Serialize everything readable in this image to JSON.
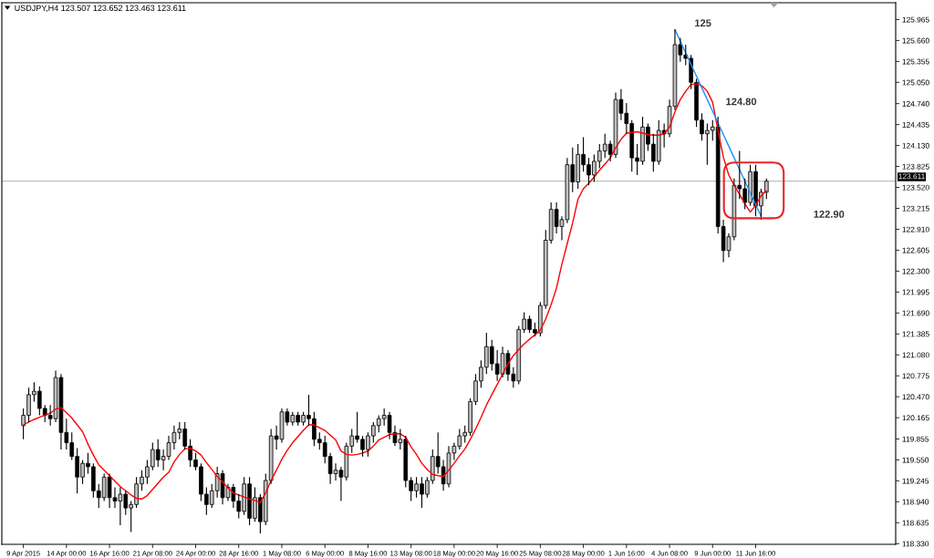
{
  "chart_data": {
    "type": "candlestick",
    "title": "USDJPY,H4 123.507 123.652 123.463 123.611",
    "categories": [
      "9 Apr 2015",
      null,
      null,
      null,
      null,
      null,
      null,
      null,
      "14 Apr 00:00",
      null,
      null,
      null,
      null,
      null,
      null,
      null,
      "16 Apr 16:00",
      null,
      null,
      null,
      null,
      null,
      null,
      null,
      "21 Apr 08:00",
      null,
      null,
      null,
      null,
      null,
      null,
      null,
      "24 Apr 00:00",
      null,
      null,
      null,
      null,
      null,
      null,
      null,
      "28 Apr 16:00",
      null,
      null,
      null,
      null,
      null,
      null,
      null,
      "1 May 08:00",
      null,
      null,
      null,
      null,
      null,
      null,
      null,
      "6 May 00:00",
      null,
      null,
      null,
      null,
      null,
      null,
      null,
      "8 May 16:00",
      null,
      null,
      null,
      null,
      null,
      null,
      null,
      "13 May 08:00",
      null,
      null,
      null,
      null,
      null,
      null,
      null,
      "18 May 00:00",
      null,
      null,
      null,
      null,
      null,
      null,
      null,
      "20 May 16:00",
      null,
      null,
      null,
      null,
      null,
      null,
      null,
      "25 May 08:00",
      null,
      null,
      null,
      null,
      null,
      null,
      null,
      "28 May 00:00",
      null,
      null,
      null,
      null,
      null,
      null,
      null,
      "1 Jun 16:00",
      null,
      null,
      null,
      null,
      null,
      null,
      null,
      "4 Jun 08:00",
      null,
      null,
      null,
      null,
      null,
      null,
      null,
      "9 Jun 00:00",
      null,
      null,
      null,
      null,
      null,
      null,
      null,
      "11 Jun 16:00",
      null,
      null
    ],
    "ohlc": [
      [
        120.05,
        120.3,
        119.85,
        120.2
      ],
      [
        120.2,
        120.6,
        120.1,
        120.5
      ],
      [
        120.5,
        120.68,
        120.4,
        120.55
      ],
      [
        120.55,
        120.62,
        120.2,
        120.3
      ],
      [
        120.3,
        120.35,
        120.1,
        120.2
      ],
      [
        120.2,
        120.35,
        120.05,
        120.15
      ],
      [
        120.15,
        120.85,
        120.1,
        120.75
      ],
      [
        120.75,
        120.8,
        119.7,
        119.95
      ],
      [
        119.95,
        120.15,
        119.7,
        119.8
      ],
      [
        119.8,
        119.95,
        119.55,
        119.6
      ],
      [
        119.6,
        119.72,
        119.06,
        119.3
      ],
      [
        119.3,
        119.55,
        119.2,
        119.5
      ],
      [
        119.5,
        119.65,
        119.35,
        119.45
      ],
      [
        119.45,
        119.5,
        119.0,
        119.1
      ],
      [
        119.1,
        119.2,
        118.85,
        119.0
      ],
      [
        119.0,
        119.35,
        118.95,
        119.3
      ],
      [
        119.3,
        119.35,
        118.85,
        119.0
      ],
      [
        119.0,
        119.15,
        118.85,
        118.95
      ],
      [
        118.95,
        119.15,
        118.6,
        119.05
      ],
      [
        119.05,
        119.1,
        118.75,
        118.85
      ],
      [
        118.85,
        118.95,
        118.5,
        118.9
      ],
      [
        118.9,
        119.3,
        118.85,
        119.2
      ],
      [
        119.2,
        119.4,
        119.1,
        119.3
      ],
      [
        119.3,
        119.55,
        119.2,
        119.45
      ],
      [
        119.45,
        119.8,
        119.4,
        119.7
      ],
      [
        119.7,
        119.85,
        119.45,
        119.55
      ],
      [
        119.55,
        119.7,
        119.4,
        119.6
      ],
      [
        119.6,
        119.9,
        119.55,
        119.8
      ],
      [
        119.8,
        120.05,
        119.7,
        119.95
      ],
      [
        119.95,
        120.1,
        119.85,
        120.0
      ],
      [
        120.0,
        120.1,
        119.7,
        119.75
      ],
      [
        119.75,
        119.85,
        119.45,
        119.55
      ],
      [
        119.55,
        119.65,
        119.4,
        119.45
      ],
      [
        119.45,
        119.5,
        118.95,
        119.05
      ],
      [
        119.05,
        119.15,
        118.75,
        118.9
      ],
      [
        118.9,
        119.2,
        118.85,
        119.1
      ],
      [
        119.1,
        119.45,
        119.0,
        119.35
      ],
      [
        119.35,
        119.4,
        118.9,
        119.0
      ],
      [
        119.0,
        119.2,
        118.95,
        119.15
      ],
      [
        119.15,
        119.2,
        118.85,
        118.95
      ],
      [
        118.95,
        119.05,
        118.7,
        118.8
      ],
      [
        118.8,
        119.3,
        118.75,
        119.2
      ],
      [
        119.2,
        119.3,
        118.6,
        118.7
      ],
      [
        118.7,
        119.15,
        118.65,
        119.0
      ],
      [
        119.0,
        119.05,
        118.48,
        118.65
      ],
      [
        118.65,
        119.35,
        118.6,
        119.25
      ],
      [
        119.25,
        120.0,
        119.2,
        119.9
      ],
      [
        119.9,
        120.05,
        119.7,
        119.85
      ],
      [
        119.85,
        120.3,
        119.8,
        120.25
      ],
      [
        120.25,
        120.3,
        120.05,
        120.1
      ],
      [
        120.1,
        120.25,
        120.05,
        120.2
      ],
      [
        120.2,
        120.25,
        120.05,
        120.1
      ],
      [
        120.1,
        120.25,
        120.05,
        120.2
      ],
      [
        120.2,
        120.5,
        120.05,
        120.15
      ],
      [
        120.15,
        120.25,
        119.75,
        119.85
      ],
      [
        119.85,
        119.95,
        119.7,
        119.8
      ],
      [
        119.8,
        119.9,
        119.5,
        119.6
      ],
      [
        119.6,
        119.65,
        119.2,
        119.35
      ],
      [
        119.35,
        119.5,
        119.25,
        119.4
      ],
      [
        119.4,
        119.45,
        118.95,
        119.3
      ],
      [
        119.3,
        119.8,
        119.25,
        119.75
      ],
      [
        119.75,
        120.0,
        119.65,
        119.9
      ],
      [
        119.9,
        120.25,
        119.8,
        119.85
      ],
      [
        119.85,
        119.9,
        119.6,
        119.7
      ],
      [
        119.7,
        119.95,
        119.6,
        119.9
      ],
      [
        119.9,
        120.1,
        119.8,
        120.05
      ],
      [
        120.05,
        120.2,
        119.95,
        120.15
      ],
      [
        120.15,
        120.3,
        120.05,
        120.2
      ],
      [
        120.2,
        120.25,
        119.85,
        119.95
      ],
      [
        119.95,
        120.05,
        119.75,
        119.8
      ],
      [
        119.8,
        120.0,
        119.7,
        119.85
      ],
      [
        119.85,
        119.9,
        119.15,
        119.25
      ],
      [
        119.25,
        119.3,
        118.95,
        119.1
      ],
      [
        119.1,
        119.3,
        119.0,
        119.2
      ],
      [
        119.2,
        119.3,
        118.85,
        119.05
      ],
      [
        119.05,
        119.3,
        119.0,
        119.25
      ],
      [
        119.25,
        119.7,
        119.2,
        119.6
      ],
      [
        119.6,
        119.95,
        119.35,
        119.45
      ],
      [
        119.45,
        119.55,
        119.1,
        119.2
      ],
      [
        119.2,
        119.75,
        119.15,
        119.65
      ],
      [
        119.65,
        119.8,
        119.55,
        119.75
      ],
      [
        119.75,
        120.0,
        119.7,
        119.9
      ],
      [
        119.9,
        120.05,
        119.8,
        119.95
      ],
      [
        119.95,
        120.45,
        119.9,
        120.4
      ],
      [
        120.4,
        120.8,
        120.35,
        120.7
      ],
      [
        120.7,
        121.0,
        120.6,
        120.9
      ],
      [
        120.9,
        121.4,
        120.8,
        121.2
      ],
      [
        121.2,
        121.3,
        120.85,
        120.95
      ],
      [
        120.95,
        121.15,
        120.7,
        120.8
      ],
      [
        120.8,
        121.2,
        120.75,
        121.1
      ],
      [
        121.1,
        121.15,
        120.7,
        120.8
      ],
      [
        120.8,
        120.9,
        120.6,
        120.7
      ],
      [
        120.7,
        121.5,
        120.65,
        121.45
      ],
      [
        121.45,
        121.7,
        121.4,
        121.6
      ],
      [
        121.6,
        121.65,
        121.4,
        121.45
      ],
      [
        121.45,
        121.55,
        121.35,
        121.4
      ],
      [
        121.4,
        121.85,
        121.35,
        121.8
      ],
      [
        121.8,
        122.9,
        121.75,
        122.75
      ],
      [
        122.75,
        123.3,
        122.7,
        123.2
      ],
      [
        123.2,
        123.3,
        122.85,
        122.95
      ],
      [
        122.95,
        123.1,
        122.75,
        123.05
      ],
      [
        123.05,
        123.95,
        123.0,
        123.85
      ],
      [
        123.85,
        124.1,
        123.45,
        123.6
      ],
      [
        123.6,
        124.15,
        123.5,
        124.0
      ],
      [
        124.0,
        124.25,
        123.75,
        123.85
      ],
      [
        123.85,
        123.95,
        123.55,
        123.7
      ],
      [
        123.7,
        124.0,
        123.6,
        123.9
      ],
      [
        123.9,
        124.15,
        123.8,
        124.05
      ],
      [
        124.05,
        124.3,
        123.95,
        124.15
      ],
      [
        124.15,
        124.2,
        123.9,
        124.0
      ],
      [
        124.0,
        124.9,
        123.95,
        124.8
      ],
      [
        124.8,
        124.95,
        124.5,
        124.6
      ],
      [
        124.6,
        124.75,
        124.3,
        124.45
      ],
      [
        124.45,
        124.5,
        123.75,
        123.95
      ],
      [
        123.95,
        124.15,
        123.7,
        123.9
      ],
      [
        123.9,
        124.55,
        123.85,
        124.4
      ],
      [
        124.4,
        124.45,
        124.05,
        124.15
      ],
      [
        124.15,
        124.3,
        123.75,
        123.9
      ],
      [
        123.9,
        124.5,
        123.85,
        124.35
      ],
      [
        124.35,
        124.45,
        124.1,
        124.3
      ],
      [
        124.3,
        124.8,
        124.25,
        124.7
      ],
      [
        124.7,
        125.82,
        124.65,
        125.6
      ],
      [
        125.6,
        125.7,
        125.35,
        125.45
      ],
      [
        125.45,
        125.6,
        125.3,
        125.4
      ],
      [
        125.4,
        125.45,
        124.95,
        125.05
      ],
      [
        125.05,
        125.1,
        124.4,
        124.5
      ],
      [
        124.5,
        124.6,
        124.2,
        124.3
      ],
      [
        124.3,
        124.45,
        123.85,
        124.35
      ],
      [
        124.35,
        124.5,
        124.2,
        124.4
      ],
      [
        124.4,
        124.55,
        122.85,
        122.95
      ],
      [
        122.95,
        123.05,
        122.43,
        122.6
      ],
      [
        122.6,
        122.85,
        122.5,
        122.8
      ],
      [
        122.8,
        123.65,
        122.75,
        123.55
      ],
      [
        123.55,
        124.05,
        123.35,
        123.5
      ],
      [
        123.5,
        123.65,
        123.2,
        123.3
      ],
      [
        123.3,
        123.85,
        123.25,
        123.75
      ],
      [
        123.75,
        123.85,
        123.1,
        123.25
      ],
      [
        123.25,
        123.5,
        123.05,
        123.45
      ],
      [
        123.45,
        123.65,
        123.35,
        123.61
      ]
    ],
    "colors": [
      "#c0c0c0",
      "#c0c0c0",
      "#c0c0c0",
      "#000000",
      "#000000",
      "#000000",
      "#c0c0c0",
      "#000000",
      "#000000",
      "#000000",
      "#000000",
      "#c0c0c0",
      "#000000",
      "#000000",
      "#000000",
      "#c0c0c0",
      "#000000",
      "#000000",
      "#c0c0c0",
      "#000000",
      "#c0c0c0",
      "#c0c0c0",
      "#c0c0c0",
      "#c0c0c0",
      "#c0c0c0",
      "#000000",
      "#c0c0c0",
      "#c0c0c0",
      "#c0c0c0",
      "#c0c0c0",
      "#000000",
      "#000000",
      "#000000",
      "#000000",
      "#000000",
      "#c0c0c0",
      "#c0c0c0",
      "#000000",
      "#c0c0c0",
      "#000000",
      "#000000",
      "#c0c0c0",
      "#000000",
      "#c0c0c0",
      "#000000",
      "#c0c0c0",
      "#c0c0c0",
      "#000000",
      "#c0c0c0",
      "#000000",
      "#c0c0c0",
      "#000000",
      "#c0c0c0",
      "#000000",
      "#000000",
      "#000000",
      "#000000",
      "#000000",
      "#c0c0c0",
      "#000000",
      "#c0c0c0",
      "#c0c0c0",
      "#000000",
      "#000000",
      "#c0c0c0",
      "#c0c0c0",
      "#c0c0c0",
      "#c0c0c0",
      "#000000",
      "#000000",
      "#c0c0c0",
      "#000000",
      "#000000",
      "#c0c0c0",
      "#000000",
      "#c0c0c0",
      "#c0c0c0",
      "#000000",
      "#000000",
      "#c0c0c0",
      "#c0c0c0",
      "#c0c0c0",
      "#c0c0c0",
      "#c0c0c0",
      "#c0c0c0",
      "#c0c0c0",
      "#c0c0c0",
      "#000000",
      "#000000",
      "#c0c0c0",
      "#000000",
      "#000000",
      "#c0c0c0",
      "#c0c0c0",
      "#000000",
      "#000000",
      "#c0c0c0",
      "#c0c0c0",
      "#c0c0c0",
      "#000000",
      "#c0c0c0",
      "#c0c0c0",
      "#000000",
      "#c0c0c0",
      "#000000",
      "#000000",
      "#c0c0c0",
      "#c0c0c0",
      "#c0c0c0",
      "#000000",
      "#c0c0c0",
      "#000000",
      "#000000",
      "#000000",
      "#000000",
      "#c0c0c0",
      "#000000",
      "#000000",
      "#c0c0c0",
      "#000000",
      "#c0c0c0",
      "#c0c0c0",
      "#000000",
      "#000000",
      "#000000",
      "#000000",
      "#000000",
      "#c0c0c0",
      "#c0c0c0",
      "#000000",
      "#000000",
      "#c0c0c0",
      "#c0c0c0",
      "#000000",
      "#000000",
      "#c0c0c0",
      "#000000",
      "#c0c0c0",
      "#c0c0c0"
    ],
    "series": [
      {
        "type": "line",
        "color": "#ff0000",
        "values": [
          120.06,
          120.1,
          120.14,
          120.17,
          120.2,
          120.23,
          120.29,
          120.31,
          120.24,
          120.16,
          120.06,
          119.96,
          119.78,
          119.62,
          119.48,
          119.4,
          119.32,
          119.24,
          119.16,
          119.1,
          119.04,
          118.99,
          118.98,
          119.03,
          119.12,
          119.21,
          119.3,
          119.37,
          119.52,
          119.63,
          119.71,
          119.72,
          119.68,
          119.62,
          119.51,
          119.41,
          119.31,
          119.23,
          119.14,
          119.07,
          119.04,
          119.01,
          118.98,
          118.96,
          118.93,
          119.07,
          119.25,
          119.4,
          119.56,
          119.69,
          119.8,
          119.89,
          119.98,
          120.06,
          120.06,
          120.02,
          119.98,
          119.91,
          119.84,
          119.68,
          119.63,
          119.62,
          119.63,
          119.65,
          119.68,
          119.75,
          119.84,
          119.88,
          119.92,
          119.93,
          119.93,
          119.88,
          119.74,
          119.63,
          119.5,
          119.41,
          119.34,
          119.32,
          119.31,
          119.4,
          119.5,
          119.61,
          119.71,
          119.85,
          120.0,
          120.17,
          120.35,
          120.5,
          120.65,
          120.8,
          120.95,
          121.07,
          121.16,
          121.24,
          121.31,
          121.37,
          121.44,
          121.6,
          121.81,
          122.05,
          122.4,
          122.7,
          123.0,
          123.35,
          123.5,
          123.58,
          123.67,
          123.77,
          123.86,
          123.95,
          124.1,
          124.22,
          124.31,
          124.32,
          124.33,
          124.31,
          124.29,
          124.28,
          124.28,
          124.3,
          124.4,
          124.62,
          124.8,
          124.92,
          125.02,
          125.03,
          125.0,
          124.92,
          124.76,
          124.35,
          123.96,
          123.7,
          123.55,
          123.42,
          123.28,
          123.16,
          123.26,
          123.4,
          123.47
        ]
      },
      {
        "type": "line",
        "color": "#1e90ff",
        "values": [
          null,
          null,
          null,
          null,
          null,
          null,
          null,
          null,
          null,
          null,
          null,
          null,
          null,
          null,
          null,
          null,
          null,
          null,
          null,
          null,
          null,
          null,
          null,
          null,
          null,
          null,
          null,
          null,
          null,
          null,
          null,
          null,
          null,
          null,
          null,
          null,
          null,
          null,
          null,
          null,
          null,
          null,
          null,
          null,
          null,
          null,
          null,
          null,
          null,
          null,
          null,
          null,
          null,
          null,
          null,
          null,
          null,
          null,
          null,
          null,
          null,
          null,
          null,
          null,
          null,
          null,
          null,
          null,
          null,
          null,
          null,
          null,
          null,
          null,
          null,
          null,
          null,
          null,
          null,
          null,
          null,
          null,
          null,
          null,
          null,
          null,
          null,
          null,
          null,
          null,
          null,
          null,
          null,
          null,
          null,
          null,
          null,
          null,
          null,
          null,
          null,
          null,
          null,
          null,
          null,
          null,
          null,
          null,
          null,
          null,
          null,
          null,
          null,
          null,
          null,
          null,
          null,
          null,
          null,
          null,
          null,
          125.82,
          125.65,
          125.48,
          125.31,
          125.14,
          124.97,
          124.8,
          124.63,
          124.46,
          124.29,
          124.12,
          123.95,
          123.78,
          123.61,
          123.44,
          123.27,
          123.1,
          null
        ]
      }
    ],
    "ylim": [
      118.32,
      126.21
    ],
    "yticks": [
      125.965,
      {
        "value": 125.66,
        "label": "125.660"
      },
      125.355,
      {
        "value": 125.05,
        "label": "125.050"
      },
      {
        "value": 124.74,
        "label": "124.740"
      },
      124.435,
      {
        "value": 124.13,
        "label": "124.130"
      },
      123.825,
      {
        "value": 123.52,
        "label": "123.520"
      },
      123.215,
      {
        "value": 122.91,
        "label": "122.910"
      },
      122.605,
      {
        "value": 122.3,
        "label": "122.300"
      },
      121.995,
      {
        "value": 121.69,
        "label": "121.690"
      },
      121.385,
      {
        "value": 121.08,
        "label": "121.080"
      },
      120.775,
      {
        "value": 120.47,
        "label": "120.470"
      },
      120.165,
      119.855,
      {
        "value": 119.55,
        "label": "119.550"
      },
      119.245,
      {
        "value": 118.94,
        "label": "118.940"
      },
      118.635,
      {
        "value": 118.33,
        "label": "118.330"
      }
    ],
    "ref_lines": [
      {
        "axis": "y",
        "value": 123.611,
        "label": "123.611",
        "color": "#c0c0c0"
      }
    ],
    "annotations": [
      "125",
      "124.80",
      "122.90"
    ]
  }
}
